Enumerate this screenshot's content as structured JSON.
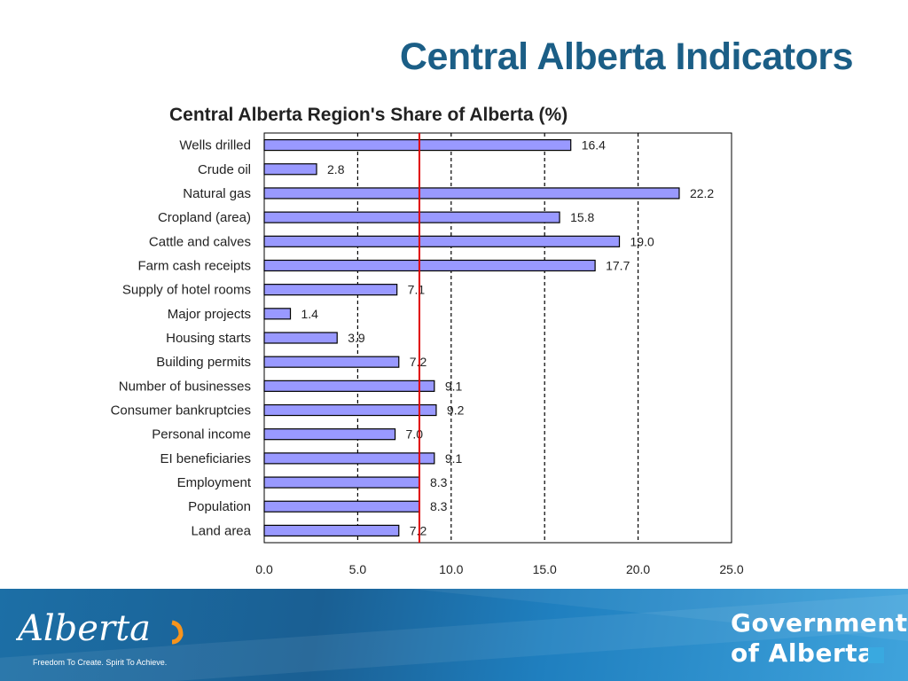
{
  "slide": {
    "title": "Central Alberta Indicators"
  },
  "chart_data": {
    "type": "bar",
    "orientation": "horizontal",
    "title": "Central Alberta Region's Share of Alberta (%)",
    "categories": [
      "Wells drilled",
      "Crude oil",
      "Natural gas",
      "Cropland (area)",
      "Cattle and calves",
      "Farm cash receipts",
      "Supply of hotel rooms",
      "Major projects",
      "Housing starts",
      "Building permits",
      "Number of businesses",
      "Consumer bankruptcies",
      "Personal income",
      "EI beneficiaries",
      "Employment",
      "Population",
      "Land area"
    ],
    "values": [
      16.4,
      2.8,
      22.2,
      15.8,
      19.0,
      17.7,
      7.1,
      1.4,
      3.9,
      7.2,
      9.1,
      9.2,
      7.0,
      9.1,
      8.3,
      8.3,
      7.2
    ],
    "value_labels": [
      "16.4",
      "2.8",
      "22.2",
      "15.8",
      "19.0",
      "17.7",
      "7.1",
      "1.4",
      "3.9",
      "7.2",
      "9.1",
      "9.2",
      "7.0",
      "9.1",
      "8.3",
      "8.3",
      "7.2"
    ],
    "xlim": [
      0,
      25
    ],
    "xticks": [
      0,
      5,
      10,
      15,
      20,
      25
    ],
    "xtick_labels": [
      "0.0",
      "5.0",
      "10.0",
      "15.0",
      "20.0",
      "25.0"
    ],
    "reference_line": 8.3,
    "grid": "vertical dashed",
    "colors": {
      "bar_fill": "#9999ff",
      "bar_stroke": "#000000",
      "reference_line": "#e00000",
      "grid": "#000000"
    }
  },
  "footer": {
    "logo_text": "Alberta",
    "tagline": "Freedom To Create. Spirit To Achieve.",
    "government_line1": "Government",
    "government_line2": "of Alberta"
  }
}
